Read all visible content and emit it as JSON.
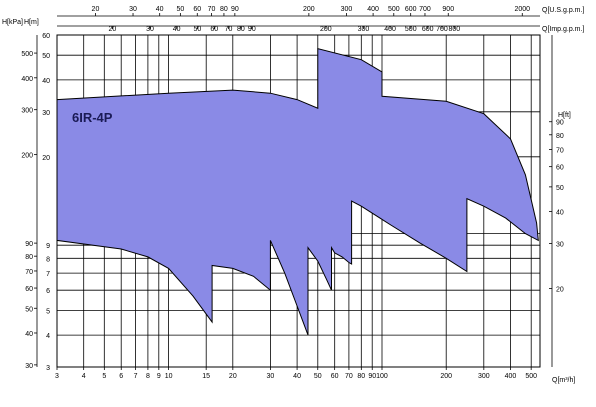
{
  "chart_data": {
    "type": "area",
    "title": "",
    "series_label": "6IR-4P",
    "axes": {
      "bottom": {
        "label": "Q[m³/h]",
        "scale": "log",
        "range": [
          3,
          550
        ],
        "ticks": [
          {
            "v": 3,
            "t": "3"
          },
          {
            "v": 4,
            "t": "4"
          },
          {
            "v": 5,
            "t": "5"
          },
          {
            "v": 6,
            "t": "6"
          },
          {
            "v": 7,
            "t": "7"
          },
          {
            "v": 8,
            "t": "8"
          },
          {
            "v": 9,
            "t": "9"
          },
          {
            "v": 10,
            "t": "10"
          },
          {
            "v": 15,
            "t": "15"
          },
          {
            "v": 20,
            "t": "20"
          },
          {
            "v": 30,
            "t": "30"
          },
          {
            "v": 40,
            "t": "40"
          },
          {
            "v": 50,
            "t": "50"
          },
          {
            "v": 60,
            "t": "60"
          },
          {
            "v": 70,
            "t": "70"
          },
          {
            "v": 80,
            "t": "80"
          },
          {
            "v": 90,
            "t": "90"
          },
          {
            "v": 100,
            "t": "100"
          },
          {
            "v": 200,
            "t": "200"
          },
          {
            "v": 300,
            "t": "300"
          },
          {
            "v": 400,
            "t": "400"
          },
          {
            "v": 500,
            "t": "500"
          }
        ]
      },
      "top_usgpm": {
        "label": "Q[U.S.g.p.m.]",
        "factor": 4.403,
        "ticks": [
          {
            "v": 20,
            "t": "20"
          },
          {
            "v": 30,
            "t": "30"
          },
          {
            "v": 40,
            "t": "40"
          },
          {
            "v": 50,
            "t": "50"
          },
          {
            "v": 60,
            "t": "60"
          },
          {
            "v": 70,
            "t": "70"
          },
          {
            "v": 80,
            "t": "80"
          },
          {
            "v": 90,
            "t": "90"
          },
          {
            "v": 200,
            "t": "200"
          },
          {
            "v": 300,
            "t": "300"
          },
          {
            "v": 400,
            "t": "400"
          },
          {
            "v": 500,
            "t": "500"
          },
          {
            "v": 600,
            "t": "600"
          },
          {
            "v": 700,
            "t": "700"
          },
          {
            "v": 900,
            "t": "900"
          },
          {
            "v": 2000,
            "t": "2000"
          }
        ]
      },
      "top_impgpm": {
        "label": "Q[Imp.g.p.m.]",
        "factor": 3.666,
        "ticks": [
          {
            "v": 20,
            "t": "20"
          },
          {
            "v": 30,
            "t": "30"
          },
          {
            "v": 40,
            "t": "40"
          },
          {
            "v": 50,
            "t": "50"
          },
          {
            "v": 60,
            "t": "60"
          },
          {
            "v": 70,
            "t": "70"
          },
          {
            "v": 80,
            "t": "80"
          },
          {
            "v": 90,
            "t": "90"
          },
          {
            "v": 200,
            "t": "200"
          },
          {
            "v": 300,
            "t": "300"
          },
          {
            "v": 400,
            "t": "400"
          },
          {
            "v": 500,
            "t": "500"
          },
          {
            "v": 600,
            "t": "600"
          },
          {
            "v": 700,
            "t": "700"
          },
          {
            "v": 800,
            "t": "800"
          }
        ]
      },
      "left_m": {
        "label": "H[m]",
        "scale": "log",
        "range": [
          3,
          60
        ],
        "ticks": [
          {
            "v": 3,
            "t": "3"
          },
          {
            "v": 4,
            "t": "4"
          },
          {
            "v": 5,
            "t": "5"
          },
          {
            "v": 6,
            "t": "6"
          },
          {
            "v": 7,
            "t": "7"
          },
          {
            "v": 8,
            "t": "8"
          },
          {
            "v": 9,
            "t": "9"
          },
          {
            "v": 20,
            "t": "20"
          },
          {
            "v": 30,
            "t": "30"
          },
          {
            "v": 40,
            "t": "40"
          },
          {
            "v": 50,
            "t": "50"
          },
          {
            "v": 60,
            "t": "60"
          }
        ]
      },
      "left_kpa": {
        "label": "H[kPa]",
        "factor": 9.81,
        "ticks": [
          {
            "v": 30,
            "t": "30"
          },
          {
            "v": 40,
            "t": "40"
          },
          {
            "v": 50,
            "t": "50"
          },
          {
            "v": 60,
            "t": "60"
          },
          {
            "v": 70,
            "t": "70"
          },
          {
            "v": 80,
            "t": "80"
          },
          {
            "v": 90,
            "t": "90"
          },
          {
            "v": 200,
            "t": "200"
          },
          {
            "v": 300,
            "t": "300"
          },
          {
            "v": 400,
            "t": "400"
          },
          {
            "v": 500,
            "t": "500"
          }
        ]
      },
      "right_ft": {
        "label": "H[ft]",
        "factor": 3.2808,
        "ticks": [
          {
            "v": 20,
            "t": "20"
          },
          {
            "v": 30,
            "t": "30"
          },
          {
            "v": 40,
            "t": "40"
          },
          {
            "v": 50,
            "t": "50"
          },
          {
            "v": 60,
            "t": "60"
          },
          {
            "v": 70,
            "t": "70"
          },
          {
            "v": 80,
            "t": "80"
          },
          {
            "v": 90,
            "t": "90"
          }
        ]
      }
    },
    "grid": true,
    "gridlines_x": [
      3,
      4,
      5,
      6,
      7,
      8,
      9,
      10,
      15,
      20,
      30,
      40,
      50,
      60,
      70,
      80,
      90,
      100,
      200,
      300,
      400,
      500
    ],
    "gridlines_y": [
      3,
      4,
      5,
      6,
      7,
      8,
      9,
      10,
      20,
      30,
      40,
      50,
      60
    ],
    "fill_color": "#8a8ae6",
    "stroke_color": "#000000",
    "region": [
      [
        3,
        33.5
      ],
      [
        10,
        35.5
      ],
      [
        20,
        36.5
      ],
      [
        30,
        35.5
      ],
      [
        40,
        33.5
      ],
      [
        50,
        31.0
      ],
      [
        50,
        53.0
      ],
      [
        80,
        48.0
      ],
      [
        100,
        43.0
      ],
      [
        100,
        34.5
      ],
      [
        200,
        33.0
      ],
      [
        300,
        29.5
      ],
      [
        400,
        23.5
      ],
      [
        470,
        17.0
      ],
      [
        530,
        11.0
      ],
      [
        540,
        9.4
      ],
      [
        470,
        10.0
      ],
      [
        380,
        11.5
      ],
      [
        300,
        12.8
      ],
      [
        250,
        13.7
      ],
      [
        250,
        7.1
      ],
      [
        200,
        8.0
      ],
      [
        150,
        9.2
      ],
      [
        110,
        10.8
      ],
      [
        80,
        12.8
      ],
      [
        72,
        13.4
      ],
      [
        72,
        7.6
      ],
      [
        70,
        7.7
      ],
      [
        65,
        8.1
      ],
      [
        60,
        8.4
      ],
      [
        58,
        8.8
      ],
      [
        58,
        6.0
      ],
      [
        55,
        6.6
      ],
      [
        50,
        7.8
      ],
      [
        45,
        8.8
      ],
      [
        45,
        4.0
      ],
      [
        40,
        5.2
      ],
      [
        35,
        7.0
      ],
      [
        30,
        9.4
      ],
      [
        30,
        6.0
      ],
      [
        25,
        6.8
      ],
      [
        20,
        7.3
      ],
      [
        16,
        7.5
      ],
      [
        16,
        4.5
      ],
      [
        13,
        5.7
      ],
      [
        10,
        7.3
      ],
      [
        8,
        8.1
      ],
      [
        6,
        8.7
      ],
      [
        3,
        9.4
      ]
    ]
  }
}
